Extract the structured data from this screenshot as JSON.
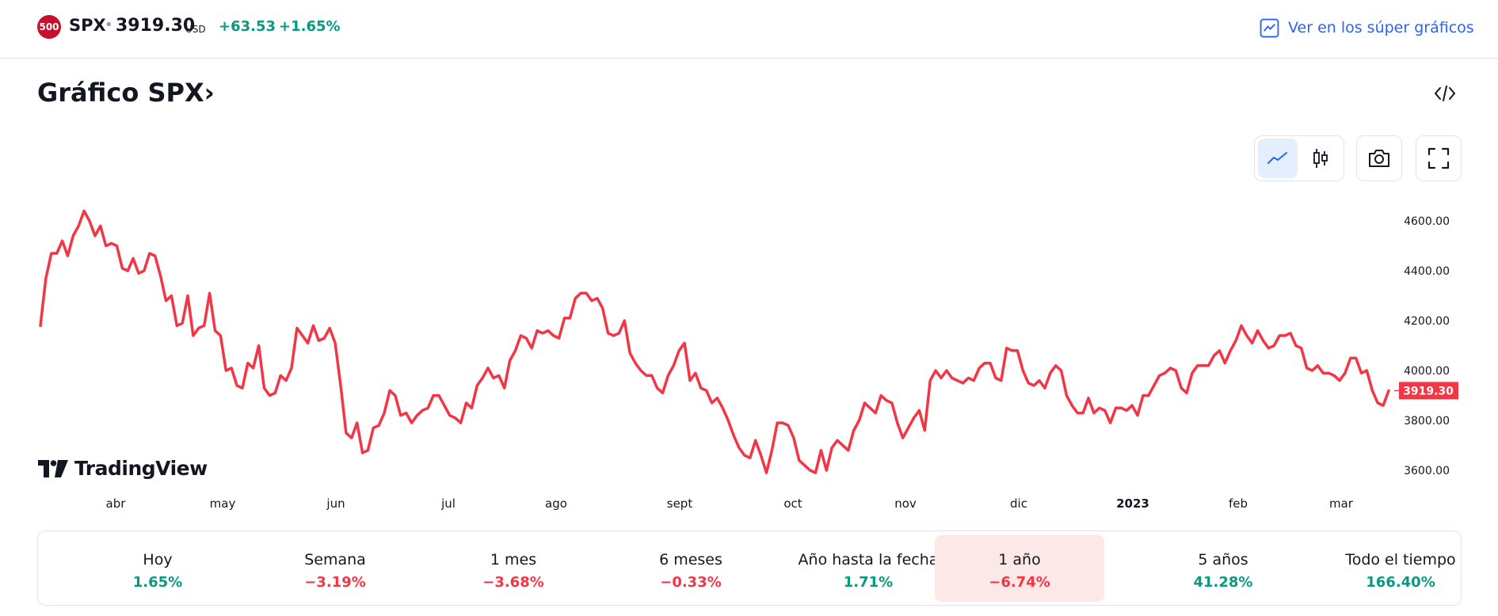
{
  "header": {
    "badge": "500",
    "symbol": "SPX",
    "price": "3919.30",
    "currency": "USD",
    "change": "+63.53",
    "change_pct": "+1.65%",
    "super_link": "Ver en los súper gráficos"
  },
  "title": "Gráfico SPX",
  "title_chevron": "›",
  "chart_data": {
    "type": "line",
    "color": "#f23645",
    "ylim": [
      3540,
      4700
    ],
    "y_ticks": [
      "4600.00",
      "4400.00",
      "4200.00",
      "4000.00",
      "3800.00",
      "3600.00"
    ],
    "y_tick_values": [
      4600,
      4400,
      4200,
      4000,
      3800,
      3600
    ],
    "x_ticks": [
      "abr",
      "may",
      "jun",
      "jul",
      "ago",
      "sept",
      "oct",
      "nov",
      "dic",
      "2023",
      "feb",
      "mar"
    ],
    "last_value": 3919.3,
    "last_label": "3919.30",
    "values": [
      4180,
      4370,
      4470,
      4470,
      4520,
      4460,
      4540,
      4580,
      4640,
      4600,
      4540,
      4580,
      4500,
      4510,
      4500,
      4410,
      4400,
      4450,
      4390,
      4400,
      4470,
      4460,
      4380,
      4280,
      4300,
      4180,
      4190,
      4300,
      4140,
      4170,
      4180,
      4310,
      4160,
      4140,
      4000,
      4010,
      3940,
      3930,
      4030,
      4010,
      4100,
      3930,
      3900,
      3910,
      3980,
      3960,
      4010,
      4170,
      4140,
      4110,
      4180,
      4120,
      4130,
      4170,
      4110,
      3940,
      3750,
      3730,
      3790,
      3670,
      3680,
      3770,
      3780,
      3830,
      3920,
      3900,
      3820,
      3830,
      3790,
      3820,
      3840,
      3850,
      3900,
      3900,
      3860,
      3820,
      3810,
      3790,
      3870,
      3850,
      3940,
      3970,
      4010,
      3970,
      3980,
      3930,
      4040,
      4080,
      4140,
      4130,
      4090,
      4160,
      4150,
      4160,
      4140,
      4130,
      4210,
      4210,
      4290,
      4310,
      4310,
      4280,
      4290,
      4250,
      4150,
      4140,
      4150,
      4200,
      4070,
      4030,
      4000,
      3980,
      3980,
      3930,
      3910,
      3980,
      4020,
      4080,
      4110,
      3960,
      3990,
      3930,
      3920,
      3870,
      3890,
      3850,
      3800,
      3740,
      3690,
      3660,
      3650,
      3720,
      3660,
      3590,
      3680,
      3790,
      3790,
      3780,
      3730,
      3640,
      3620,
      3600,
      3590,
      3680,
      3600,
      3690,
      3720,
      3700,
      3680,
      3760,
      3800,
      3870,
      3850,
      3830,
      3900,
      3880,
      3870,
      3790,
      3730,
      3770,
      3810,
      3840,
      3760,
      3960,
      4000,
      3970,
      4000,
      3970,
      3960,
      3950,
      3970,
      3960,
      4010,
      4030,
      4030,
      3970,
      3960,
      4090,
      4080,
      4080,
      4000,
      3950,
      3940,
      3960,
      3930,
      3990,
      4020,
      4000,
      3900,
      3860,
      3830,
      3830,
      3890,
      3830,
      3850,
      3840,
      3790,
      3850,
      3850,
      3840,
      3860,
      3820,
      3900,
      3900,
      3940,
      3980,
      3990,
      4010,
      4000,
      3930,
      3910,
      3990,
      4020,
      4020,
      4020,
      4060,
      4080,
      4030,
      4080,
      4120,
      4180,
      4140,
      4110,
      4160,
      4120,
      4090,
      4100,
      4140,
      4140,
      4150,
      4100,
      4090,
      4010,
      4000,
      4020,
      3990,
      3990,
      3980,
      3960,
      3990,
      4050,
      4050,
      3990,
      4000,
      3920,
      3870,
      3860,
      3919.3
    ]
  },
  "watermark": "TradingView",
  "performance": [
    {
      "label": "Hoy",
      "value": "1.65%",
      "dir": "pos"
    },
    {
      "label": "Semana",
      "value": "−3.19%",
      "dir": "neg"
    },
    {
      "label": "1 mes",
      "value": "−3.68%",
      "dir": "neg"
    },
    {
      "label": "6 meses",
      "value": "−0.33%",
      "dir": "neg"
    },
    {
      "label": "Año hasta la fecha",
      "value": "1.71%",
      "dir": "pos"
    },
    {
      "label": "1 año",
      "value": "−6.74%",
      "dir": "neg",
      "active": true
    },
    {
      "label": "5 años",
      "value": "41.28%",
      "dir": "pos"
    },
    {
      "label": "Todo el tiempo",
      "value": "166.40%",
      "dir": "pos"
    }
  ],
  "colors": {
    "accent": "#2962ff",
    "positive": "#089981",
    "negative": "#f23645"
  }
}
